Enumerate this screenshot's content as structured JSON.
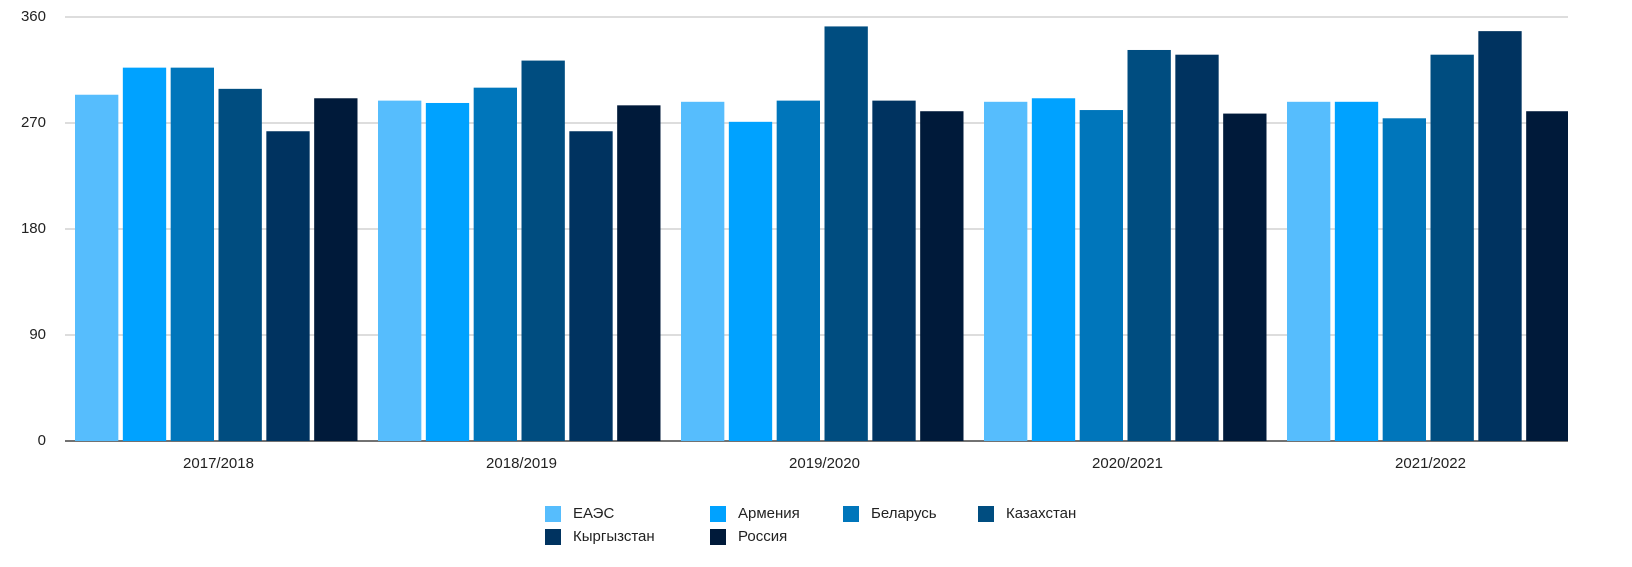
{
  "chart_data": {
    "type": "bar",
    "categories": [
      "2017/2018",
      "2018/2019",
      "2019/2020",
      "2020/2021",
      "2021/2022"
    ],
    "series": [
      {
        "name": "ЕАЭС",
        "color": "#56bdfd",
        "values": [
          294,
          289,
          288,
          288,
          288
        ]
      },
      {
        "name": "Армения",
        "color": "#00a2ff",
        "values": [
          317,
          287,
          271,
          291,
          288
        ]
      },
      {
        "name": "Беларусь",
        "color": "#0076bb",
        "values": [
          317,
          300,
          289,
          281,
          274
        ]
      },
      {
        "name": "Казахстан",
        "color": "#004d80",
        "values": [
          299,
          323,
          352,
          332,
          328
        ]
      },
      {
        "name": "Кыргызстан",
        "color": "#003360",
        "values": [
          263,
          263,
          289,
          328,
          348
        ]
      },
      {
        "name": "Россия",
        "color": "#001a3a",
        "values": [
          291,
          285,
          280,
          278,
          280
        ]
      }
    ],
    "ylim": [
      0,
      360
    ],
    "yticks": [
      0,
      90,
      180,
      270,
      360
    ],
    "grid": true,
    "legend": "bottom"
  }
}
